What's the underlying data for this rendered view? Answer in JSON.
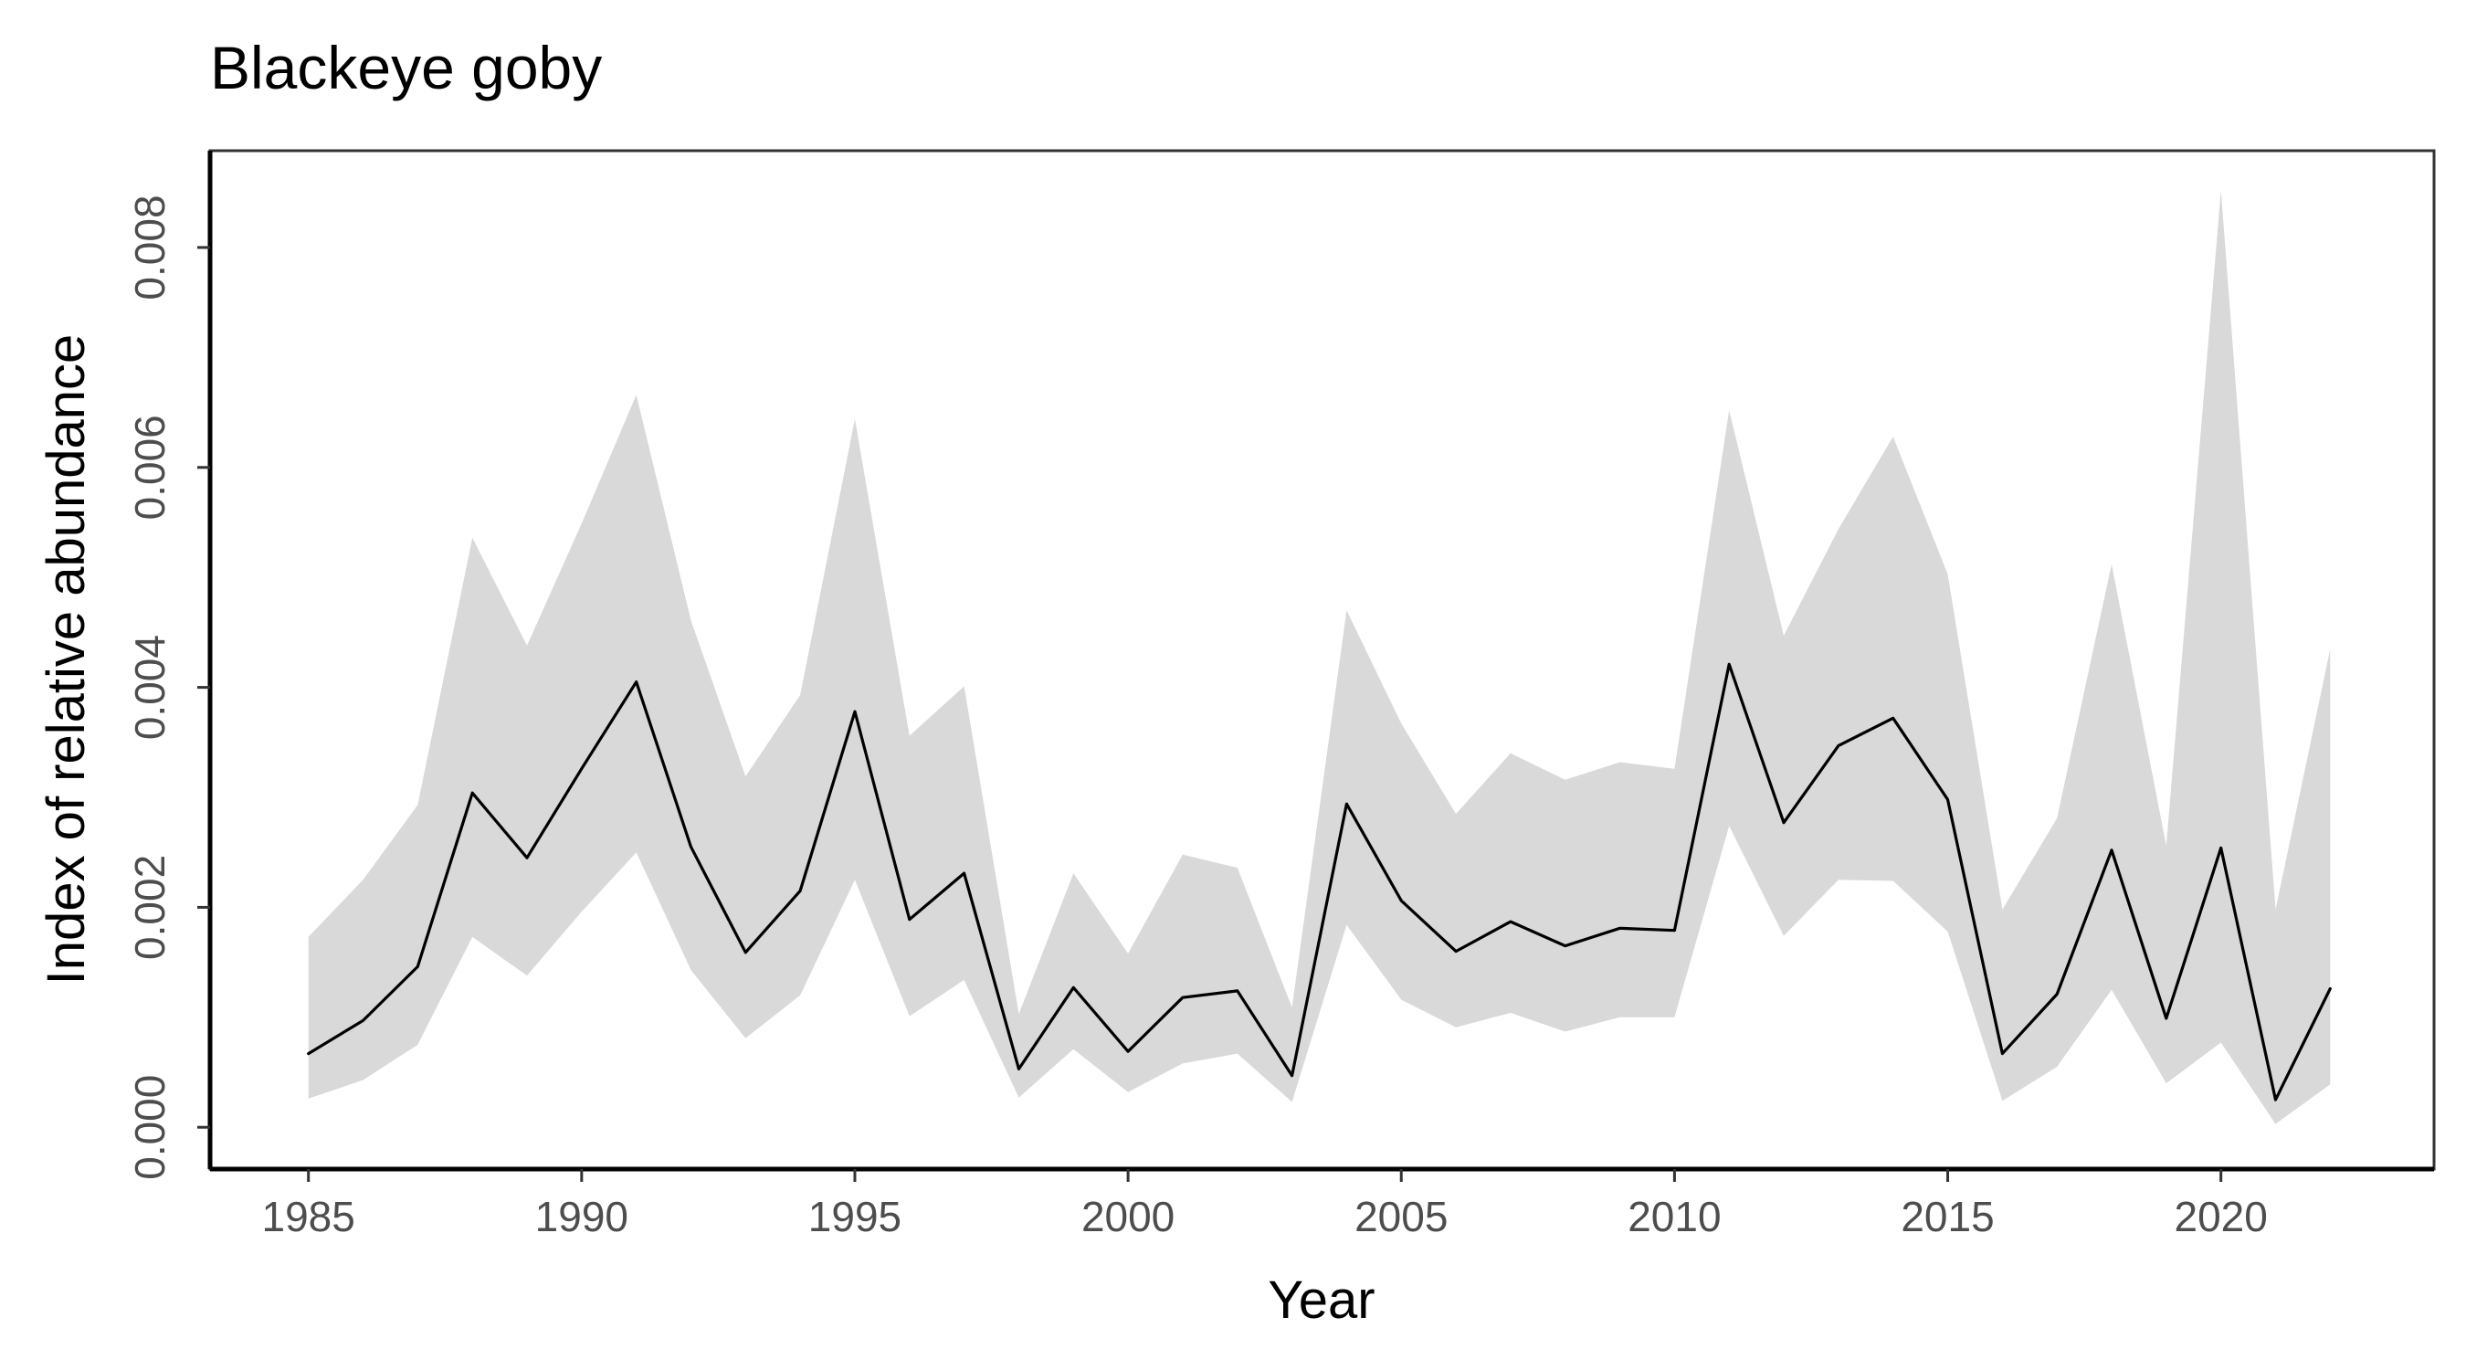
{
  "chart_data": {
    "type": "line",
    "title": "Blackeye goby",
    "xlabel": "Year",
    "ylabel": "Index of relative abundance",
    "xlim": [
      1983.2,
      2023.9
    ],
    "ylim": [
      -0.00038,
      0.00888
    ],
    "xticks": [
      1985,
      1990,
      1995,
      2000,
      2005,
      2010,
      2015,
      2020
    ],
    "xtick_labels": [
      "1985",
      "1990",
      "1995",
      "2000",
      "2005",
      "2010",
      "2015",
      "2020"
    ],
    "yticks": [
      0,
      0.002,
      0.004,
      0.006,
      0.008
    ],
    "ytick_labels": [
      "0.000",
      "0.002",
      "0.004",
      "0.006",
      "0.008"
    ],
    "grid": false,
    "x": [
      1985,
      1986,
      1987,
      1988,
      1989,
      1990,
      1991,
      1992,
      1993,
      1994,
      1995,
      1996,
      1997,
      1998,
      1999,
      2000,
      2001,
      2002,
      2003,
      2004,
      2005,
      2006,
      2007,
      2008,
      2009,
      2010,
      2011,
      2012,
      2013,
      2014,
      2015,
      2016,
      2017,
      2018,
      2019,
      2020,
      2021,
      2022
    ],
    "series": [
      {
        "role": "estimate",
        "color": "#000000",
        "values": [
          0.00067,
          0.00097,
          0.00146,
          0.00304,
          0.00245,
          0.00326,
          0.00405,
          0.00255,
          0.00159,
          0.00215,
          0.00378,
          0.00189,
          0.00231,
          0.00053,
          0.00127,
          0.00069,
          0.00118,
          0.00124,
          0.00047,
          0.00294,
          0.00206,
          0.0016,
          0.00187,
          0.00165,
          0.00181,
          0.00179,
          0.00421,
          0.00277,
          0.00347,
          0.00372,
          0.00298,
          0.00067,
          0.00121,
          0.00252,
          0.00099,
          0.00254,
          0.00025,
          0.00126
        ]
      }
    ],
    "band": {
      "color": "#d9d9d9",
      "lower": [
        0.00026,
        0.00043,
        0.00075,
        0.00173,
        0.00138,
        0.00196,
        0.0025,
        0.00143,
        0.00081,
        0.0012,
        0.00225,
        0.00101,
        0.00134,
        0.00027,
        0.00071,
        0.00032,
        0.00058,
        0.00067,
        0.00023,
        0.00184,
        0.00116,
        0.00091,
        0.00104,
        0.00087,
        0.001,
        0.001,
        0.00274,
        0.00174,
        0.00225,
        0.00224,
        0.00178,
        0.00024,
        0.00055,
        0.00125,
        0.0004,
        0.00077,
        3e-05,
        0.00039
      ],
      "upper": [
        0.00173,
        0.00225,
        0.00293,
        0.00536,
        0.00438,
        0.00549,
        0.00666,
        0.00461,
        0.00319,
        0.00393,
        0.00644,
        0.00356,
        0.00401,
        0.00103,
        0.00231,
        0.00158,
        0.00248,
        0.00236,
        0.00109,
        0.0047,
        0.00367,
        0.00285,
        0.0034,
        0.00316,
        0.00332,
        0.00326,
        0.00652,
        0.00447,
        0.00544,
        0.00628,
        0.00503,
        0.00198,
        0.00281,
        0.00512,
        0.00256,
        0.00852,
        0.00198,
        0.00435
      ]
    }
  }
}
